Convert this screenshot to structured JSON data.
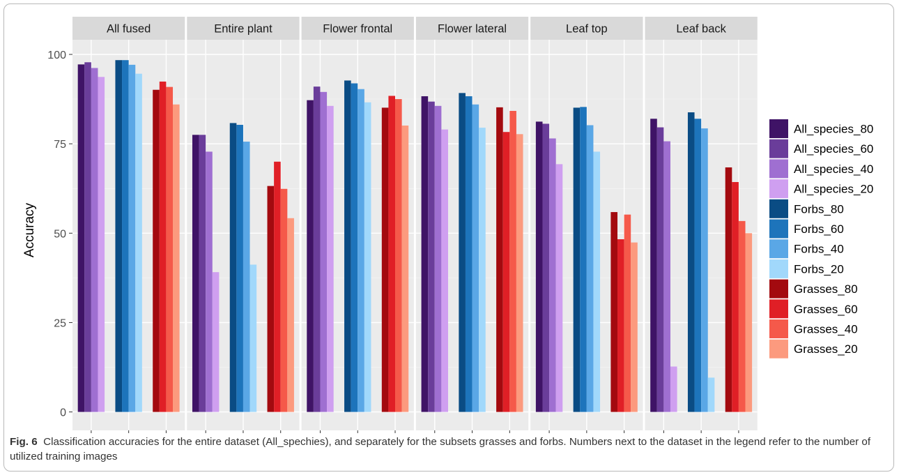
{
  "figure": {
    "caption_label": "Fig. 6",
    "caption_text": "Classification accuracies for the entire dataset (All_spechies), and separately for the subsets grasses and forbs. Numbers next to the dataset in the legend refer to the number of utilized training images"
  },
  "chart_data": {
    "type": "bar",
    "ylabel": "Accuracy",
    "xlabel": "",
    "ylim": [
      0,
      100
    ],
    "yticks": [
      0,
      25,
      50,
      75,
      100
    ],
    "grid": true,
    "legend_position": "right",
    "facets": [
      "All fused",
      "Entire plant",
      "Flower frontal",
      "Flower lateral",
      "Leaf top",
      "Leaf back"
    ],
    "groups": [
      "All_species",
      "Forbs",
      "Grasses"
    ],
    "series": [
      {
        "name": "All_species_80",
        "group": "All_species",
        "color": "#3f1366",
        "values": [
          97.2,
          77.5,
          87.2,
          88.3,
          81.2,
          82.0
        ]
      },
      {
        "name": "All_species_60",
        "group": "All_species",
        "color": "#6a3d9a",
        "values": [
          97.8,
          77.5,
          91.0,
          86.8,
          80.6,
          79.6
        ]
      },
      {
        "name": "All_species_40",
        "group": "All_species",
        "color": "#9f6fd1",
        "values": [
          96.2,
          72.8,
          89.5,
          85.6,
          76.5,
          75.7
        ]
      },
      {
        "name": "All_species_20",
        "group": "All_species",
        "color": "#cf9ff0",
        "values": [
          93.7,
          39.1,
          85.6,
          79.0,
          69.3,
          12.7
        ]
      },
      {
        "name": "Forbs_80",
        "group": "Forbs",
        "color": "#0a4c84",
        "values": [
          98.4,
          80.8,
          92.7,
          89.2,
          85.1,
          83.8
        ]
      },
      {
        "name": "Forbs_60",
        "group": "Forbs",
        "color": "#1d74bb",
        "values": [
          98.4,
          80.3,
          91.9,
          88.3,
          85.3,
          82.0
        ]
      },
      {
        "name": "Forbs_40",
        "group": "Forbs",
        "color": "#5aa7e6",
        "values": [
          97.1,
          75.6,
          90.3,
          86.0,
          80.2,
          79.3
        ]
      },
      {
        "name": "Forbs_20",
        "group": "Forbs",
        "color": "#a1d8fb",
        "values": [
          94.6,
          41.2,
          86.6,
          79.5,
          72.8,
          9.6
        ]
      },
      {
        "name": "Grasses_80",
        "group": "Grasses",
        "color": "#a30a0f",
        "values": [
          90.1,
          63.2,
          85.1,
          85.2,
          55.9,
          68.4
        ]
      },
      {
        "name": "Grasses_60",
        "group": "Grasses",
        "color": "#e01f26",
        "values": [
          92.4,
          70.0,
          88.4,
          78.3,
          48.3,
          64.3
        ]
      },
      {
        "name": "Grasses_40",
        "group": "Grasses",
        "color": "#f5594a",
        "values": [
          90.9,
          62.4,
          87.5,
          84.2,
          55.2,
          53.4
        ]
      },
      {
        "name": "Grasses_20",
        "group": "Grasses",
        "color": "#fc9a7e",
        "values": [
          86.0,
          54.2,
          80.1,
          77.7,
          47.4,
          50.0
        ]
      }
    ]
  }
}
